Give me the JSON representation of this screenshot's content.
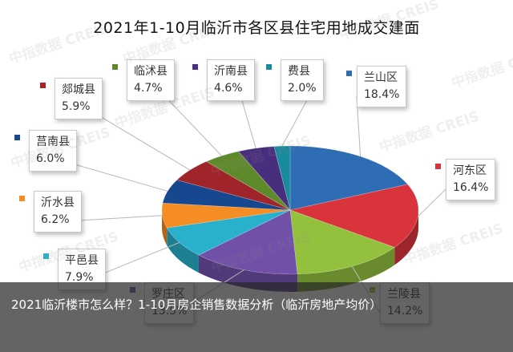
{
  "watermark": "中指数据 CREIS",
  "caption": "2021临沂楼市怎么样？1-10月房企销售数据分析（临沂房地产均价）",
  "chart_data": {
    "type": "pie",
    "title": "2021年1-10月临沂市各区县住宅用地成交建面",
    "slices": [
      {
        "name": "兰山区",
        "value": 18.4,
        "label": "18.4%",
        "color": "#2e6db4"
      },
      {
        "name": "河东区",
        "value": 16.4,
        "label": "16.4%",
        "color": "#d9343c"
      },
      {
        "name": "兰陵县",
        "value": 14.2,
        "label": "14.2%",
        "color": "#93c13e"
      },
      {
        "name": "罗庄区",
        "value": 13.5,
        "label": "13.5%",
        "color": "#7050a8"
      },
      {
        "name": "平邑县",
        "value": 7.9,
        "label": "7.9%",
        "color": "#29b0cc"
      },
      {
        "name": "沂水县",
        "value": 6.2,
        "label": "6.2%",
        "color": "#f58c24"
      },
      {
        "name": "莒南县",
        "value": 6.0,
        "label": "6.0%",
        "color": "#17478f"
      },
      {
        "name": "郯城县",
        "value": 5.9,
        "label": "5.9%",
        "color": "#a0252b"
      },
      {
        "name": "临沭县",
        "value": 4.7,
        "label": "4.7%",
        "color": "#5f8a2b"
      },
      {
        "name": "沂南县",
        "value": 4.6,
        "label": "4.6%",
        "color": "#4a2e7e"
      },
      {
        "name": "费县",
        "value": 2.0,
        "label": "2.0%",
        "color": "#1a8a9e"
      }
    ]
  }
}
